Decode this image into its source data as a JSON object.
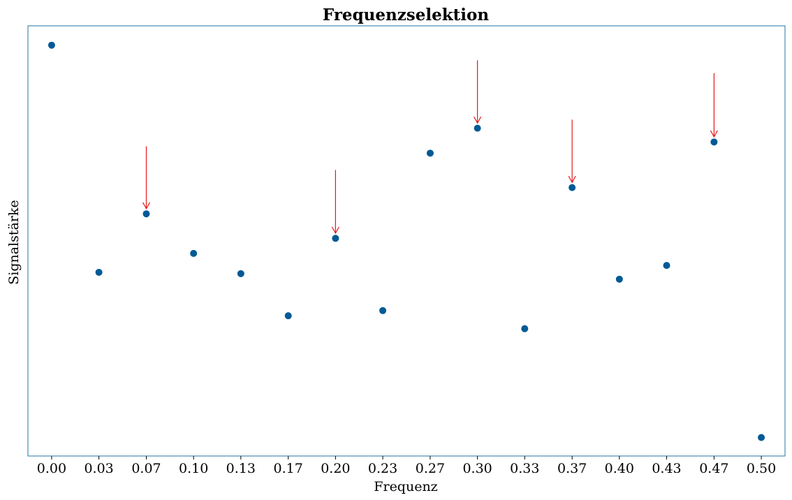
{
  "chart_data": {
    "type": "scatter",
    "title": "Frequenzselektion",
    "xlabel": "Frequenz",
    "ylabel": "Signalstärke",
    "xlim": [
      -0.0167,
      0.5167
    ],
    "ylim": [
      0,
      1
    ],
    "x_ticks": [
      0.0,
      0.0333,
      0.0667,
      0.1,
      0.1333,
      0.1667,
      0.2,
      0.2333,
      0.2667,
      0.3,
      0.3333,
      0.3667,
      0.4,
      0.4333,
      0.4667,
      0.5
    ],
    "x_tick_labels": [
      "0.00",
      "0.03",
      "0.07",
      "0.10",
      "0.13",
      "0.17",
      "0.20",
      "0.23",
      "0.27",
      "0.30",
      "0.33",
      "0.37",
      "0.40",
      "0.43",
      "0.47",
      "0.50"
    ],
    "y_ticks_shown": false,
    "grid": false,
    "legend": "none",
    "point_color": "#005a96",
    "arrow_color": "#e41a1c",
    "points": [
      {
        "x": 0.0,
        "y": 0.955
      },
      {
        "x": 0.0333,
        "y": 0.427
      },
      {
        "x": 0.0667,
        "y": 0.563
      },
      {
        "x": 0.1,
        "y": 0.471
      },
      {
        "x": 0.1333,
        "y": 0.424
      },
      {
        "x": 0.1667,
        "y": 0.326
      },
      {
        "x": 0.2,
        "y": 0.506
      },
      {
        "x": 0.2333,
        "y": 0.338
      },
      {
        "x": 0.2667,
        "y": 0.704
      },
      {
        "x": 0.3,
        "y": 0.762
      },
      {
        "x": 0.3333,
        "y": 0.296
      },
      {
        "x": 0.3667,
        "y": 0.624
      },
      {
        "x": 0.4,
        "y": 0.411
      },
      {
        "x": 0.4333,
        "y": 0.443
      },
      {
        "x": 0.4667,
        "y": 0.73
      },
      {
        "x": 0.5,
        "y": 0.043
      }
    ],
    "annotations": [
      {
        "type": "arrow",
        "x": 0.0667,
        "y_from": 0.72,
        "y_to": 0.575
      },
      {
        "type": "arrow",
        "x": 0.2,
        "y_from": 0.665,
        "y_to": 0.518
      },
      {
        "type": "arrow",
        "x": 0.3,
        "y_from": 0.92,
        "y_to": 0.774
      },
      {
        "type": "arrow",
        "x": 0.3667,
        "y_from": 0.782,
        "y_to": 0.636
      },
      {
        "type": "arrow",
        "x": 0.4667,
        "y_from": 0.89,
        "y_to": 0.742
      }
    ]
  }
}
